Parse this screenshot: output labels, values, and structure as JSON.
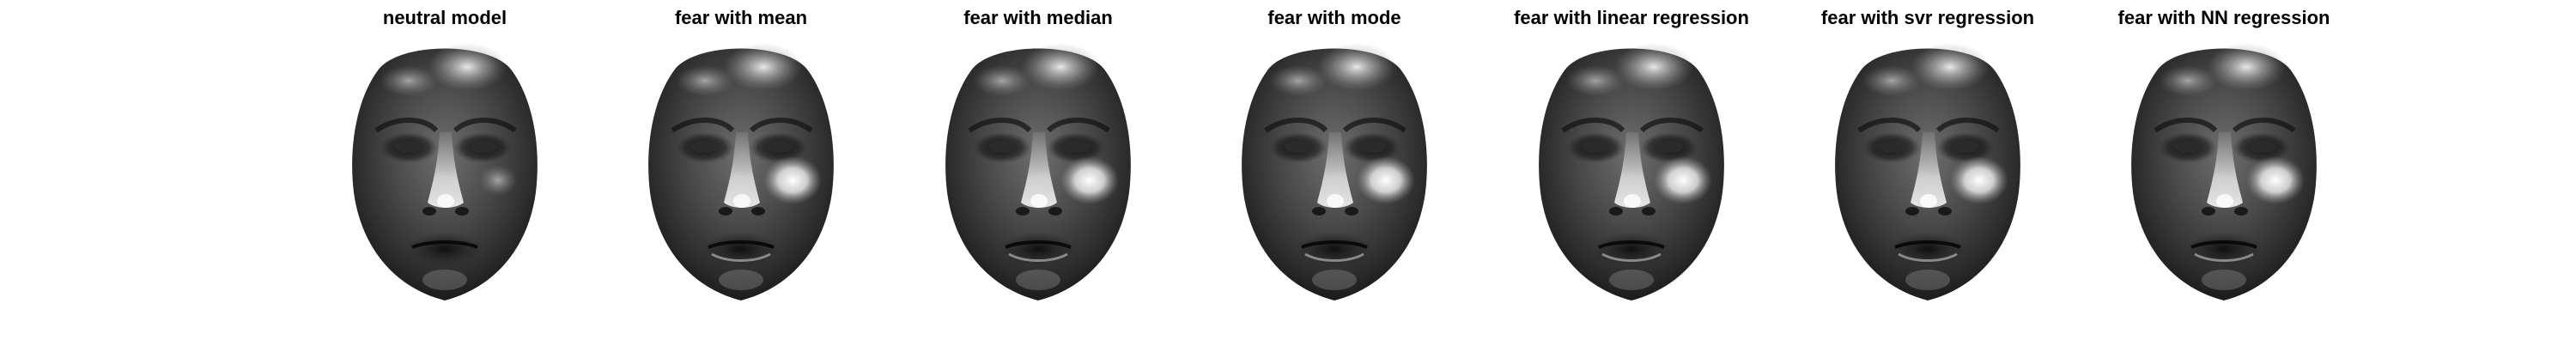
{
  "panels": [
    {
      "title": "neutral model",
      "expression": "neutral"
    },
    {
      "title": "fear with mean",
      "expression": "fear"
    },
    {
      "title": "fear with median",
      "expression": "fear"
    },
    {
      "title": "fear with mode",
      "expression": "fear"
    },
    {
      "title": "fear with linear regression",
      "expression": "fear"
    },
    {
      "title": "fear with svr regression",
      "expression": "fear"
    },
    {
      "title": "fear with NN regression",
      "expression": "fear"
    }
  ]
}
